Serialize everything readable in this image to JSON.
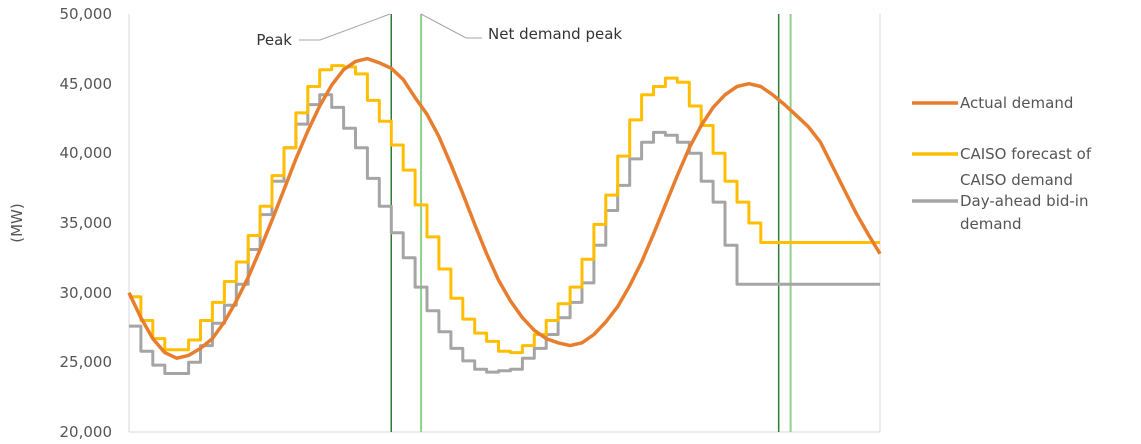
{
  "chart_data": {
    "type": "line",
    "title": "",
    "xlabel": "",
    "ylabel": "(MW)",
    "ylim": [
      20000,
      50000
    ],
    "yticks": [
      "20,000",
      "25,000",
      "30,000",
      "35,000",
      "40,000",
      "45,000",
      "50,000"
    ],
    "grid": "vertical",
    "legend_position": "right",
    "colors": {
      "actual": "#e87d2e",
      "forecast": "#ffbf00",
      "dayahead": "#a5a5a5",
      "peak_line": "#2e7d32",
      "net_peak_line": "#8fd18a"
    },
    "annotations": [
      {
        "text": "Peak",
        "target_hour": 22
      },
      {
        "text": "Net demand peak",
        "target_hour": 24.5
      }
    ],
    "peak_hours": [
      22,
      54.5
    ],
    "net_peak_hours": [
      24.5,
      55.5
    ],
    "x_range_hours": [
      0,
      63
    ],
    "series": [
      {
        "key": "actual",
        "name": "Actual demand",
        "style": "smooth",
        "x": [
          0,
          1,
          2,
          3,
          4,
          5,
          6,
          7,
          8,
          9,
          10,
          11,
          12,
          13,
          14,
          15,
          16,
          17,
          18,
          19,
          20,
          21,
          22,
          23,
          24,
          25,
          26,
          27,
          28,
          29,
          30,
          31,
          32,
          33,
          34,
          35,
          36,
          37,
          38,
          39,
          40,
          41,
          42,
          43,
          44,
          45,
          46,
          47,
          48,
          49,
          50,
          51,
          52,
          53,
          54,
          55,
          56,
          57,
          58,
          59,
          60,
          61,
          62,
          63
        ],
        "values": [
          30000,
          28200,
          26700,
          25700,
          25300,
          25500,
          26000,
          26700,
          27900,
          29400,
          31100,
          33100,
          35200,
          37400,
          39600,
          41600,
          43400,
          44900,
          46000,
          46600,
          46800,
          46500,
          46100,
          45300,
          44000,
          42800,
          41200,
          39200,
          37100,
          34900,
          32800,
          30900,
          29400,
          28200,
          27300,
          26700,
          26400,
          26200,
          26400,
          27000,
          27900,
          29000,
          30500,
          32200,
          34200,
          36300,
          38400,
          40400,
          42000,
          43300,
          44200,
          44800,
          45000,
          44800,
          44200,
          43500,
          42700,
          41900,
          40800,
          39100,
          37400,
          35700,
          34200,
          32800
        ]
      },
      {
        "key": "forecast",
        "name": "CAISO forecast of CAISO demand",
        "style": "step",
        "x": [
          0,
          1,
          2,
          3,
          4,
          5,
          6,
          7,
          8,
          9,
          10,
          11,
          12,
          13,
          14,
          15,
          16,
          17,
          18,
          19,
          20,
          21,
          22,
          23,
          24,
          25,
          26,
          27,
          28,
          29,
          30,
          31,
          32,
          33,
          34,
          35,
          36,
          37,
          38,
          39,
          40,
          41,
          42,
          43,
          44,
          45,
          46,
          47,
          48,
          49,
          50,
          51,
          52,
          53,
          54,
          55,
          56,
          57,
          58,
          59,
          60,
          61,
          62,
          63
        ],
        "values": [
          29700,
          28000,
          26700,
          25900,
          25900,
          26600,
          28000,
          29300,
          30800,
          32200,
          34100,
          36200,
          38400,
          40400,
          42900,
          44800,
          46000,
          46300,
          46200,
          45700,
          43800,
          42300,
          40600,
          38800,
          36300,
          34000,
          31700,
          29600,
          28100,
          27100,
          26500,
          25800,
          25700,
          26200,
          27000,
          28000,
          29200,
          30400,
          32400,
          34900,
          37000,
          39800,
          42400,
          44200,
          44800,
          45400,
          45100,
          43400,
          42000,
          40000,
          38000,
          36500,
          35000,
          33600,
          33600,
          33600,
          33600,
          33600,
          33600,
          33600,
          33600,
          33600,
          33600,
          33600
        ]
      },
      {
        "key": "dayahead",
        "name": "Day-ahead bid-in demand",
        "style": "step",
        "x": [
          0,
          1,
          2,
          3,
          4,
          5,
          6,
          7,
          8,
          9,
          10,
          11,
          12,
          13,
          14,
          15,
          16,
          17,
          18,
          19,
          20,
          21,
          22,
          23,
          24,
          25,
          26,
          27,
          28,
          29,
          30,
          31,
          32,
          33,
          34,
          35,
          36,
          37,
          38,
          39,
          40,
          41,
          42,
          43,
          44,
          45,
          46,
          47,
          48,
          49,
          50,
          51,
          52,
          53,
          54,
          55,
          56,
          57,
          58,
          59,
          60,
          61,
          62,
          63
        ],
        "values": [
          27600,
          25800,
          24800,
          24200,
          24200,
          25000,
          26200,
          27800,
          29100,
          30600,
          33100,
          35600,
          38000,
          40400,
          42100,
          43500,
          44200,
          43300,
          41800,
          40400,
          38200,
          36200,
          34300,
          32500,
          30400,
          28700,
          27200,
          26000,
          25100,
          24500,
          24300,
          24400,
          24500,
          25300,
          26000,
          27000,
          28200,
          29300,
          30700,
          33400,
          35900,
          37700,
          39600,
          40800,
          41500,
          41300,
          40800,
          40000,
          38000,
          36500,
          33400,
          30600,
          30600,
          30600,
          30600,
          30600,
          30600,
          30600,
          30600,
          30600,
          30600,
          30600,
          30600,
          30600
        ]
      }
    ]
  }
}
